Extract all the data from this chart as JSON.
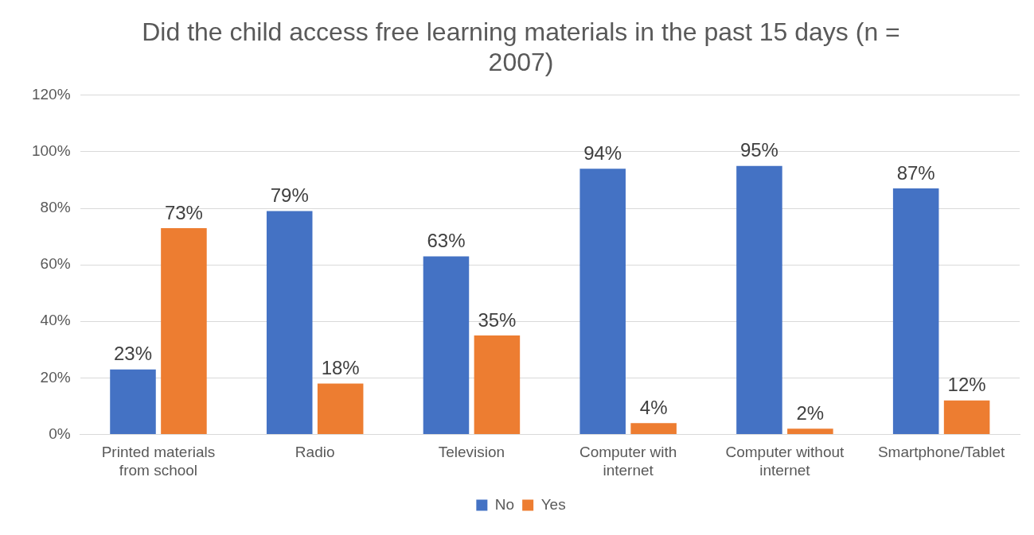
{
  "chart_data": {
    "type": "bar",
    "title": "Did the child access free learning materials in the past 15 days (n = 2007)",
    "categories": [
      "Printed materials from school",
      "Radio",
      "Television",
      "Computer with internet",
      "Computer without internet",
      "Smartphone/Tablet"
    ],
    "series": [
      {
        "name": "No",
        "color": "#4472c4",
        "values": [
          23,
          79,
          63,
          94,
          95,
          87
        ],
        "value_labels": [
          "23%",
          "79%",
          "63%",
          "94%",
          "95%",
          "87%"
        ]
      },
      {
        "name": "Yes",
        "color": "#ed7d31",
        "values": [
          73,
          18,
          35,
          4,
          2,
          12
        ],
        "value_labels": [
          "73%",
          "18%",
          "35%",
          "4%",
          "2%",
          "12%"
        ]
      }
    ],
    "ylim": [
      0,
      120
    ],
    "yticks": [
      {
        "value": 0,
        "label": "0%"
      },
      {
        "value": 20,
        "label": "20%"
      },
      {
        "value": 40,
        "label": "40%"
      },
      {
        "value": 60,
        "label": "60%"
      },
      {
        "value": 80,
        "label": "80%"
      },
      {
        "value": 100,
        "label": "100%"
      },
      {
        "value": 120,
        "label": "120%"
      }
    ],
    "grid": "y",
    "legend": "bottom"
  }
}
